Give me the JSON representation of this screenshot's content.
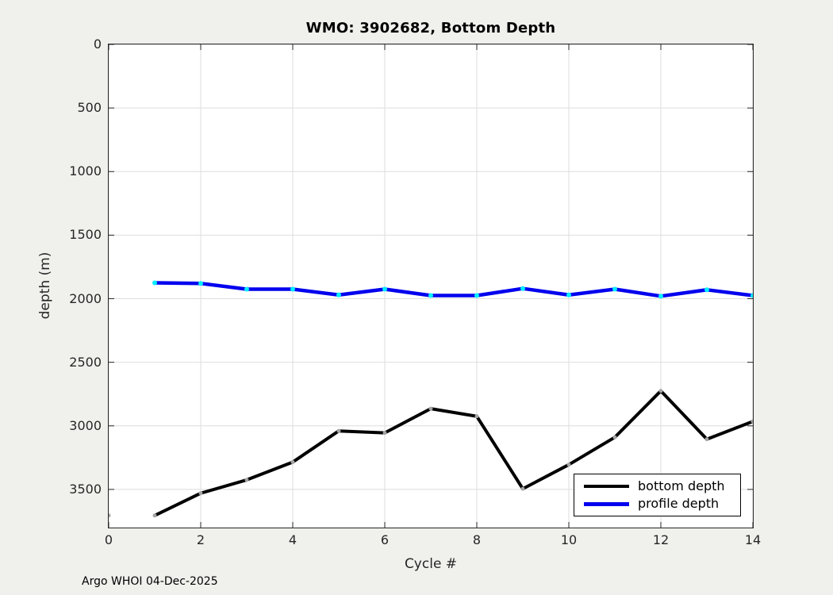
{
  "figure": {
    "background_color": "#f0f0ed"
  },
  "annotation": {
    "text": "Argo WHOI 04-Dec-2025"
  },
  "chart_data": {
    "type": "line",
    "title": "WMO: 3902682, Bottom Depth",
    "xlabel": "Cycle #",
    "ylabel": "depth (m)",
    "xlim": [
      0,
      14
    ],
    "ylim": [
      0,
      3800
    ],
    "y_axis_direction": "depth increases downward",
    "grid": true,
    "xticks": [
      0,
      2,
      4,
      6,
      8,
      10,
      12,
      14
    ],
    "yticks": [
      0,
      500,
      1000,
      1500,
      2000,
      2500,
      3000,
      3500
    ],
    "legend_position": "inside bottom-right",
    "x": [
      1,
      2,
      3,
      4,
      5,
      6,
      7,
      8,
      9,
      10,
      11,
      12,
      13,
      14
    ],
    "series": [
      {
        "name": "bottom depth",
        "color": "#000000",
        "marker_color": "#a3a3a3",
        "marker_radius": 2.5,
        "line_width": 4,
        "values": [
          3705,
          3530,
          3425,
          3285,
          3040,
          3055,
          2865,
          2925,
          3495,
          3305,
          3090,
          2725,
          3105,
          2965
        ],
        "isolated_points": [
          {
            "x": 0,
            "y": 3705
          }
        ]
      },
      {
        "name": "profile depth",
        "color": "#0000ee",
        "marker_color": "#00efff",
        "marker_radius": 3,
        "line_width": 4.5,
        "values": [
          1875,
          1880,
          1925,
          1925,
          1970,
          1925,
          1975,
          1975,
          1920,
          1970,
          1925,
          1980,
          1930,
          1975
        ],
        "isolated_points": []
      }
    ],
    "colors": {
      "plot_background": "#ffffff",
      "axis": "#262626",
      "grid": "#dedede",
      "tick_label": "#262626",
      "title": "#000000"
    }
  }
}
